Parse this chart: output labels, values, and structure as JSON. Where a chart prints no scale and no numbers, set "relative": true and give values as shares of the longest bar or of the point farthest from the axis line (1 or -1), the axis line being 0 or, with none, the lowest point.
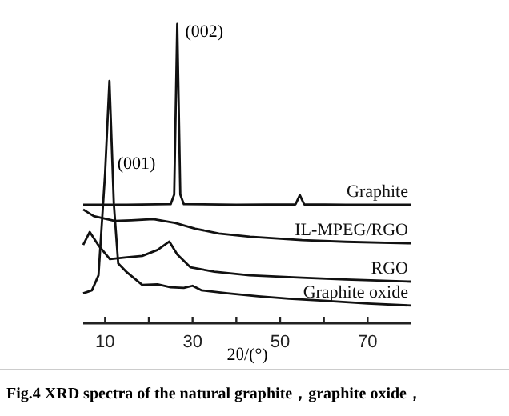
{
  "chart_data": {
    "type": "line",
    "relative": true,
    "xlabel": "2θ/(°)",
    "xlim": [
      5,
      80
    ],
    "xticks": [
      10,
      {
        "value": 20,
        "label": null
      },
      30,
      {
        "value": 40,
        "label": null
      },
      50,
      {
        "value": 60,
        "label": null
      },
      70
    ],
    "tick_labels": "x",
    "grid": false,
    "marker": "none",
    "line_style": "solid",
    "series": [
      {
        "name": "Graphite",
        "color": "#111111",
        "x": [
          5,
          15,
          25,
          25.8,
          26.5,
          27.2,
          28,
          40,
          53.5,
          54.5,
          55.5,
          65,
          80
        ],
        "values": [
          0.396,
          0.396,
          0.398,
          0.43,
          1,
          0.43,
          0.398,
          0.396,
          0.397,
          0.428,
          0.397,
          0.396,
          0.396
        ]
      },
      {
        "name": "IL-MPEG/RGO",
        "color": "#111111",
        "x": [
          5,
          7.4,
          12.2,
          16,
          21,
          26,
          30.6,
          36,
          43.1,
          55,
          65,
          80
        ],
        "values": [
          0.38,
          0.358,
          0.342,
          0.344,
          0.348,
          0.335,
          0.316,
          0.3,
          0.289,
          0.278,
          0.272,
          0.267
        ]
      },
      {
        "name": "RGO",
        "color": "#111111",
        "x": [
          5,
          6.5,
          8.5,
          11.1,
          15,
          18.5,
          22,
          24.7,
          26.5,
          29.5,
          35,
          43,
          55,
          65,
          80
        ],
        "values": [
          0.262,
          0.305,
          0.26,
          0.214,
          0.22,
          0.225,
          0.245,
          0.273,
          0.23,
          0.187,
          0.172,
          0.16,
          0.152,
          0.146,
          0.139
        ]
      },
      {
        "name": "Graphite oxide",
        "color": "#111111",
        "x": [
          5,
          7,
          8.5,
          10,
          11,
          12,
          13,
          15,
          18.5,
          22,
          25,
          28,
          30,
          32,
          38,
          45,
          52,
          60,
          70,
          80
        ],
        "values": [
          0.1,
          0.11,
          0.16,
          0.5,
          0.81,
          0.4,
          0.2,
          0.17,
          0.128,
          0.13,
          0.12,
          0.118,
          0.125,
          0.11,
          0.1,
          0.09,
          0.082,
          0.075,
          0.066,
          0.059
        ]
      }
    ],
    "annotations": [
      {
        "text": "(002)",
        "x": 26.5,
        "y": 1
      },
      {
        "text": "(001)",
        "x": 11,
        "y": 0.56
      },
      "Fig.4    XRD spectra of the natural graphite，graphite oxide，"
    ]
  }
}
